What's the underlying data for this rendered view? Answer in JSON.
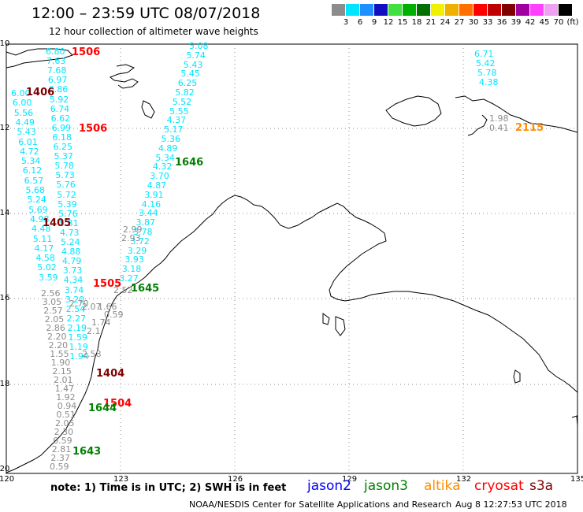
{
  "title": "12:00 – 23:59 UTC 08/07/2018",
  "subtitle": "12 hour collection of altimeter wave heights",
  "legend": {
    "unit": "(ft)",
    "bins": [
      {
        "label": "3",
        "color": "#8c8c8c"
      },
      {
        "label": "6",
        "color": "#00e5ff"
      },
      {
        "label": "9",
        "color": "#1e90ff"
      },
      {
        "label": "12",
        "color": "#1010c0"
      },
      {
        "label": "15",
        "color": "#40e040"
      },
      {
        "label": "18",
        "color": "#00b000"
      },
      {
        "label": "21",
        "color": "#007000"
      },
      {
        "label": "24",
        "color": "#f0f000"
      },
      {
        "label": "27",
        "color": "#f0b000"
      },
      {
        "label": "30",
        "color": "#ff7000"
      },
      {
        "label": "33",
        "color": "#ff0000"
      },
      {
        "label": "36",
        "color": "#c00000"
      },
      {
        "label": "39",
        "color": "#800000"
      },
      {
        "label": "42",
        "color": "#a000a0"
      },
      {
        "label": "45",
        "color": "#ff40ff"
      },
      {
        "label": "70",
        "color": "#f0a0f0"
      },
      {
        "label": "",
        "color": "#000000"
      }
    ]
  },
  "axes": {
    "lat_labels": [
      "-10",
      "-12",
      "-14",
      "-16",
      "-18",
      "-20"
    ],
    "lon_labels": [
      "120",
      "123",
      "126",
      "129",
      "132",
      "135"
    ]
  },
  "footer": {
    "note": "note:  1) Time is in UTC;  2) SWH is in feet",
    "satellites": [
      {
        "name": "jason2",
        "color": "#0000ff"
      },
      {
        "name": "jason3",
        "color": "#008000"
      },
      {
        "name": "altika",
        "color": "#ff8c00"
      },
      {
        "name": "cryosat",
        "color": "#ff0000"
      },
      {
        "name": "s3a",
        "color": "#800000"
      }
    ],
    "credit": "NOAA/NESDIS Center for Satellite Applications and Research",
    "timestamp": "Aug  8 12:27:53 UTC 2018"
  },
  "pass_labels": [
    {
      "text": "1506",
      "color": "#ff0000"
    },
    {
      "text": "1406",
      "color": "#800000"
    },
    {
      "text": "1506",
      "color": "#ff0000"
    },
    {
      "text": "1646",
      "color": "#008000"
    },
    {
      "text": "1405",
      "color": "#800000"
    },
    {
      "text": "1505",
      "color": "#ff0000"
    },
    {
      "text": "1645",
      "color": "#008000"
    },
    {
      "text": "1404",
      "color": "#800000"
    },
    {
      "text": "1504",
      "color": "#ff0000"
    },
    {
      "text": "1644",
      "color": "#008000"
    },
    {
      "text": "1643",
      "color": "#008000"
    },
    {
      "text": "2115",
      "color": "#ff8c00"
    }
  ],
  "track_a": {
    "color": "#00e5ff",
    "values": [
      "6.80",
      "7.63",
      "7.68",
      "6.97",
      "6.86",
      "5.92",
      "6.74",
      "6.62",
      "6.99",
      "6.18",
      "6.25",
      "5.37",
      "5.78",
      "5.73",
      "5.76",
      "5.72",
      "5.39",
      "5.76",
      "5.31",
      "4.73",
      "5.24",
      "4.88",
      "4.79",
      "3.73",
      "4.34",
      "3.74",
      "3.20",
      "2.54",
      "2.27",
      "2.19",
      "1.59",
      "1.19",
      "1.94"
    ]
  },
  "track_b": {
    "color": "#00e5ff",
    "values": [
      "6.00",
      "6.00",
      "5.56",
      "4.49",
      "5.43",
      "6.01",
      "4.72",
      "5.34",
      "6.12",
      "6.57",
      "5.68",
      "5.24",
      "5.69",
      "4.98",
      "4.48",
      "5.11",
      "4.17",
      "4.58",
      "5.02",
      "3.59"
    ]
  },
  "track_b_gray": {
    "color": "#8c8c8c",
    "values": [
      "2.56",
      "3.05",
      "2.57",
      "2.05",
      "2.86",
      "2.20",
      "2.20",
      "1.55",
      "1.90",
      "2.15",
      "2.01",
      "1.47",
      "1.92",
      "0.94",
      "0.51",
      "2.05",
      "2.30",
      "0.59",
      "2.81",
      "2.37",
      "0.59"
    ]
  },
  "track_a_gray": {
    "color": "#8c8c8c",
    "values": [
      "2.70",
      "2.07",
      "1.66",
      "0.59",
      "1.74",
      "2.1",
      "2.58"
    ]
  },
  "track_c": {
    "color": "#00e5ff",
    "values": [
      "5.08",
      "5.74",
      "5.43",
      "5.45",
      "6.25",
      "5.82",
      "5.52",
      "5.55",
      "4.37",
      "5.17",
      "5.36",
      "4.89",
      "5.34",
      "4.32",
      "3.70",
      "4.87",
      "3.91",
      "4.16",
      "3.44",
      "3.87",
      "3.78",
      "3.72",
      "3.29",
      "3.93",
      "3.18",
      "3.27"
    ]
  },
  "track_c_gray": {
    "color": "#8c8c8c",
    "values": [
      "2.99",
      "2.93",
      "2.52"
    ]
  },
  "track_d": {
    "color": "#00e5ff",
    "values": [
      "6.71",
      "5.42",
      "5.78",
      "4.38"
    ]
  },
  "track_d_gray": {
    "color": "#8c8c8c",
    "values": [
      "1.98",
      "0.41"
    ]
  }
}
